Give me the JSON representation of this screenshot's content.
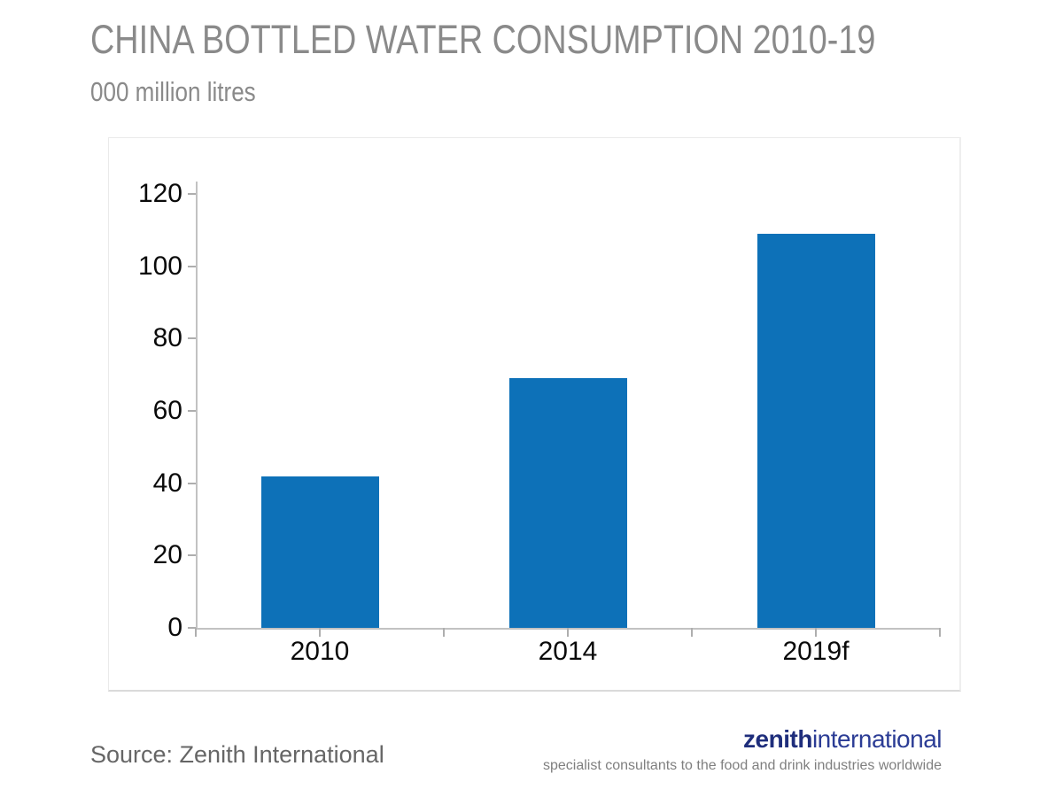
{
  "header": {
    "title": "CHINA BOTTLED WATER CONSUMPTION 2010-19",
    "units_label": "000 million litres"
  },
  "chart_data": {
    "type": "bar",
    "title": "CHINA BOTTLED WATER CONSUMPTION 2010-19",
    "ylabel": "000 million litres",
    "categories": [
      "2010",
      "2014",
      "2019f"
    ],
    "values": [
      42,
      69,
      109
    ],
    "ylim": [
      0,
      120
    ],
    "ytick_step": 20,
    "grid": false,
    "legend": "none",
    "bar_color": "#0d71b8"
  },
  "footer": {
    "source": "Source: Zenith International",
    "logo_bold": "zenith",
    "logo_light": "international",
    "tagline": "specialist consultants to the food and drink industries worldwide"
  },
  "colors": {
    "bar": "#0d71b8",
    "axis": "#c2c2c2",
    "tick": "#aeaeae",
    "label_black": "#0a0a0a",
    "title_gray": "#8a8a8a",
    "source_gray": "#666666",
    "logo_navy": "#1f2e7c",
    "logo_blue": "#2b3c95",
    "tagline_gray": "#7f7f7f"
  }
}
